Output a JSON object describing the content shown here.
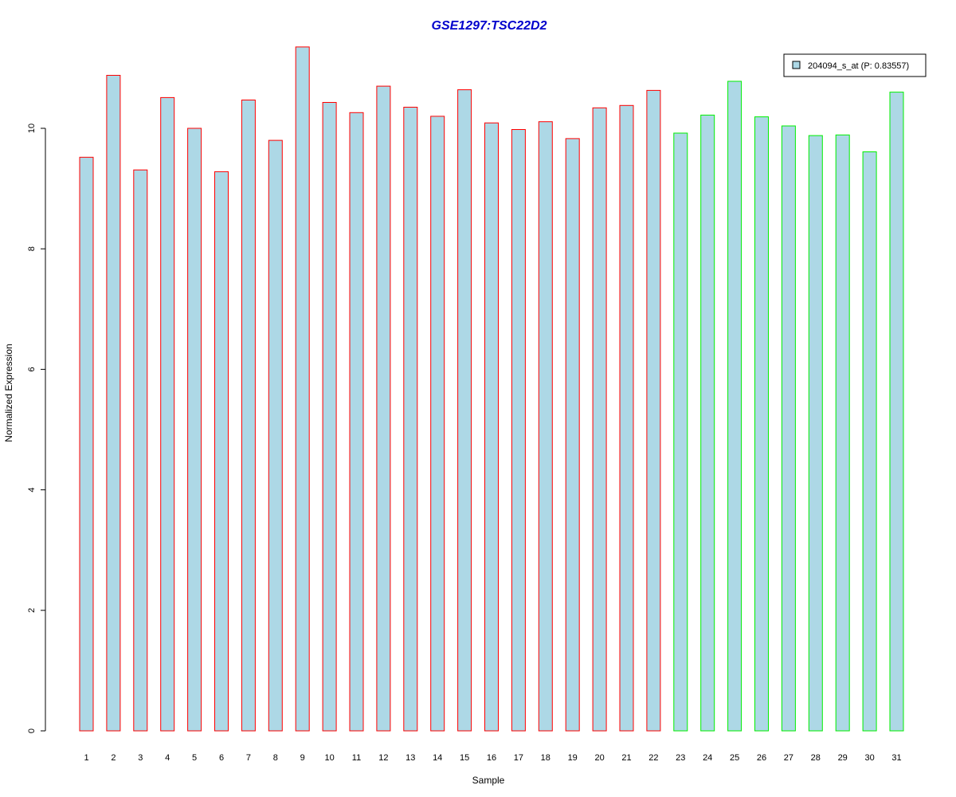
{
  "chart_data": {
    "type": "bar",
    "title": "GSE1297:TSC22D2",
    "xlabel": "Sample",
    "ylabel": "Normalized Expression",
    "ylim": [
      0,
      11.4
    ],
    "yticks": [
      "0",
      "2",
      "4",
      "6",
      "8",
      "10"
    ],
    "categories": [
      "1",
      "2",
      "3",
      "4",
      "5",
      "6",
      "7",
      "8",
      "9",
      "10",
      "11",
      "12",
      "13",
      "14",
      "15",
      "16",
      "17",
      "18",
      "19",
      "20",
      "21",
      "22",
      "23",
      "24",
      "25",
      "26",
      "27",
      "28",
      "29",
      "30",
      "31"
    ],
    "values": [
      9.52,
      10.88,
      9.31,
      10.51,
      10.0,
      9.28,
      10.47,
      9.8,
      11.35,
      10.43,
      10.26,
      10.7,
      10.35,
      10.2,
      10.64,
      10.09,
      9.98,
      10.11,
      9.83,
      10.34,
      10.38,
      10.63,
      9.92,
      10.22,
      10.78,
      10.19,
      10.04,
      9.88,
      9.89,
      9.61,
      10.6
    ],
    "groups": [
      {
        "from": 0,
        "to": 21,
        "border_color": "#ff0000"
      },
      {
        "from": 22,
        "to": 30,
        "border_color": "#00ee00"
      }
    ],
    "bar_fill": "#add8e6",
    "title_color": "#0000cc",
    "legend": {
      "label": "204094_s_at (P: 0.83557)",
      "swatch_fill": "#add8e6",
      "placement": "top-right"
    },
    "grid": false
  }
}
